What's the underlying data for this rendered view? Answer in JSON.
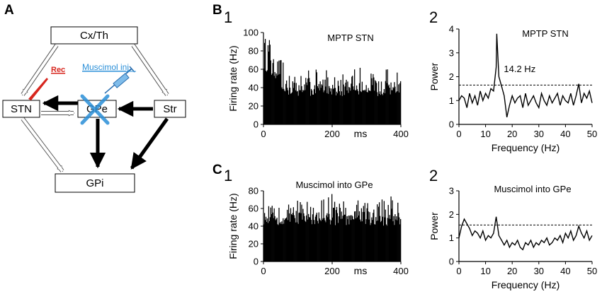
{
  "panel_labels": {
    "A": "A",
    "B": "B",
    "C": "C"
  },
  "sub_labels": {
    "b1": "1",
    "b2": "2",
    "c1": "1",
    "c2": "2"
  },
  "diagram": {
    "nodes": {
      "cxth": "Cx/Th",
      "stn": "STN",
      "gpe": "GPe",
      "str": "Str",
      "gpi": "GPi"
    },
    "rec_label": "Rec",
    "muscimol_label": "Muscimol inj",
    "colors": {
      "rec": "#d7261e",
      "muscimol": "#2a8fd8",
      "cross": "#2a8fd8"
    }
  },
  "chart_data": [
    {
      "id": "B1",
      "type": "bar",
      "title": "MPTP STN",
      "xlabel": "ms",
      "ylabel": "Firing rate (Hz)",
      "xlim": [
        0,
        400
      ],
      "ylim": [
        0,
        100
      ],
      "xticks": [
        0,
        200,
        400
      ],
      "yticks": [
        0,
        20,
        40,
        60,
        80,
        100
      ],
      "description": "Peri-event firing-rate histogram, 1 ms bins; initial peak ~95 Hz near 0-20 ms, then fluctuating roughly 30-60 Hz",
      "peak_region": {
        "x_range": [
          0,
          20
        ],
        "max": 95
      },
      "baseline_range": [
        30,
        62
      ]
    },
    {
      "id": "B2",
      "type": "line",
      "title": "MPTP STN",
      "xlabel": "Frequency (Hz)",
      "ylabel": "Power",
      "xlim": [
        0,
        50
      ],
      "ylim": [
        0,
        4
      ],
      "xticks": [
        0,
        10,
        20,
        30,
        40,
        50
      ],
      "yticks": [
        0,
        1,
        2,
        3,
        4
      ],
      "threshold": 1.65,
      "annotation": "14.2 Hz",
      "series": [
        {
          "x": [
            0,
            1,
            2,
            3,
            4,
            5,
            6,
            7,
            8,
            9,
            10,
            11,
            12,
            13,
            14,
            14.2,
            15,
            16,
            17,
            18,
            19,
            20,
            21,
            22,
            23,
            24,
            25,
            26,
            27,
            28,
            29,
            30,
            31,
            32,
            33,
            34,
            35,
            36,
            37,
            38,
            39,
            40,
            41,
            42,
            43,
            44,
            45,
            46,
            47,
            48,
            49,
            50
          ],
          "y": [
            1.0,
            1.2,
            1.1,
            0.7,
            1.3,
            0.9,
            1.2,
            0.8,
            1.4,
            1.0,
            1.3,
            1.1,
            1.5,
            1.4,
            2.4,
            3.8,
            2.0,
            1.6,
            1.2,
            0.3,
            0.8,
            1.2,
            0.9,
            1.1,
            1.2,
            0.7,
            1.3,
            0.8,
            1.0,
            1.2,
            0.9,
            0.7,
            1.3,
            1.0,
            0.8,
            1.2,
            0.9,
            1.1,
            1.3,
            0.8,
            1.2,
            1.0,
            0.9,
            1.3,
            0.8,
            1.2,
            1.7,
            0.9,
            1.3,
            1.1,
            1.4,
            0.9
          ]
        }
      ]
    },
    {
      "id": "C1",
      "type": "bar",
      "title": "Muscimol into GPe",
      "xlabel": "ms",
      "ylabel": "Firing rate (Hz)",
      "xlim": [
        0,
        400
      ],
      "ylim": [
        0,
        80
      ],
      "xticks": [
        0,
        200,
        400
      ],
      "yticks": [
        0,
        20,
        40,
        60,
        80
      ],
      "description": "Peri-event firing-rate histogram, 1 ms bins; flat, fluctuating roughly 40-70 Hz",
      "baseline_range": [
        40,
        72
      ]
    },
    {
      "id": "C2",
      "type": "line",
      "title": "Muscimol into GPe",
      "xlabel": "Frequency (Hz)",
      "ylabel": "Power",
      "xlim": [
        0,
        50
      ],
      "ylim": [
        0,
        3
      ],
      "xticks": [
        0,
        10,
        20,
        30,
        40,
        50
      ],
      "yticks": [
        0,
        1,
        2,
        3
      ],
      "threshold": 1.55,
      "series": [
        {
          "x": [
            0,
            1,
            2,
            3,
            4,
            5,
            6,
            7,
            8,
            9,
            10,
            11,
            12,
            13,
            14,
            15,
            16,
            17,
            18,
            19,
            20,
            21,
            22,
            23,
            24,
            25,
            26,
            27,
            28,
            29,
            30,
            31,
            32,
            33,
            34,
            35,
            36,
            37,
            38,
            39,
            40,
            41,
            42,
            43,
            44,
            45,
            46,
            47,
            48,
            49,
            50
          ],
          "y": [
            1.0,
            1.5,
            1.8,
            1.6,
            1.4,
            1.1,
            1.3,
            1.2,
            1.0,
            1.3,
            0.9,
            1.1,
            1.0,
            1.2,
            1.9,
            1.1,
            0.9,
            0.7,
            0.9,
            0.6,
            0.8,
            0.7,
            0.9,
            0.6,
            0.5,
            0.8,
            0.7,
            0.9,
            0.6,
            0.8,
            0.7,
            0.9,
            0.8,
            1.0,
            0.7,
            0.8,
            1.0,
            0.9,
            1.1,
            0.8,
            1.2,
            1.0,
            1.3,
            0.9,
            1.1,
            1.5,
            1.2,
            1.0,
            1.3,
            0.9,
            1.1
          ]
        }
      ]
    }
  ]
}
